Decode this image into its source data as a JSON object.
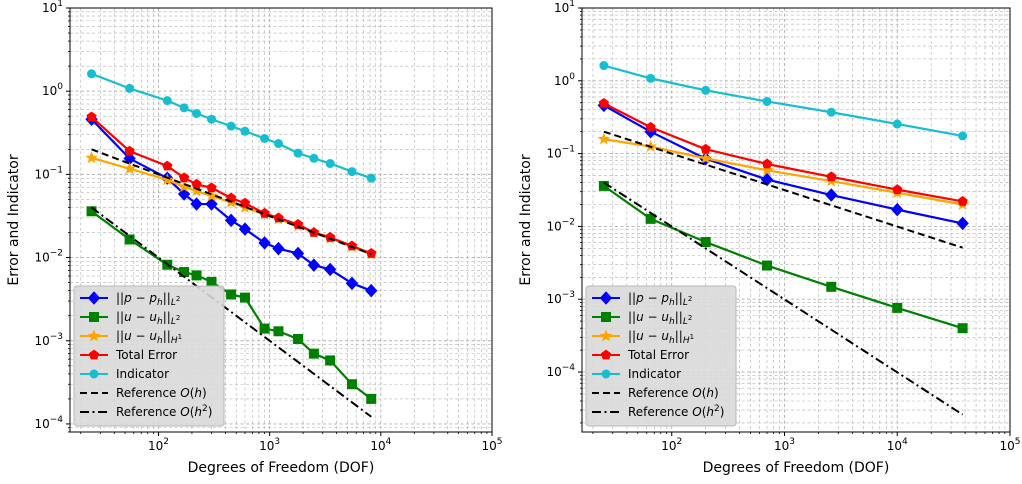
{
  "chart_data": [
    {
      "type": "line",
      "xscale": "log",
      "yscale": "log",
      "xlim": [
        16,
        100000
      ],
      "ylim": [
        8e-05,
        10
      ],
      "xlabel": "Degrees of Freedom (DOF)",
      "ylabel": "Error and Indicator",
      "grid": true,
      "legend_position": "lower-left",
      "x_ticks": [
        {
          "v": 100,
          "base": "10",
          "exp": "2"
        },
        {
          "v": 1000,
          "base": "10",
          "exp": "3"
        },
        {
          "v": 10000,
          "base": "10",
          "exp": "4"
        },
        {
          "v": 100000,
          "base": "10",
          "exp": "5"
        }
      ],
      "y_ticks": [
        {
          "v": 0.0001,
          "base": "10",
          "exp": "−4"
        },
        {
          "v": 0.001,
          "base": "10",
          "exp": "−3"
        },
        {
          "v": 0.01,
          "base": "10",
          "exp": "−2"
        },
        {
          "v": 0.1,
          "base": "10",
          "exp": "−1"
        },
        {
          "v": 1,
          "base": "10",
          "exp": "0"
        },
        {
          "v": 10,
          "base": "10",
          "exp": "1"
        }
      ],
      "series": [
        {
          "key": "pressure_l2",
          "color": "#0000ff",
          "marker": "diamond",
          "style": "solid",
          "x": [
            25,
            55,
            120,
            170,
            220,
            300,
            450,
            600,
            900,
            1200,
            1800,
            2500,
            3500,
            5500,
            8200
          ],
          "y": [
            0.46,
            0.155,
            0.09,
            0.058,
            0.044,
            0.044,
            0.028,
            0.022,
            0.015,
            0.0128,
            0.0112,
            0.0081,
            0.0072,
            0.0049,
            0.004
          ]
        },
        {
          "key": "velocity_l2",
          "color": "#008000",
          "marker": "square",
          "style": "solid",
          "x": [
            25,
            55,
            120,
            170,
            220,
            300,
            450,
            600,
            900,
            1200,
            1800,
            2500,
            3500,
            5500,
            8200
          ],
          "y": [
            0.036,
            0.0165,
            0.0082,
            0.0067,
            0.0061,
            0.0051,
            0.0036,
            0.0033,
            0.0014,
            0.0013,
            0.00105,
            0.0007,
            0.00058,
            0.0003,
            0.0002
          ]
        },
        {
          "key": "velocity_h1",
          "color": "#ffa500",
          "marker": "star",
          "style": "solid",
          "x": [
            25,
            55,
            120,
            170,
            220,
            300,
            450,
            600,
            900,
            1200,
            1800,
            2500,
            3500,
            5500,
            8200
          ],
          "y": [
            0.158,
            0.117,
            0.086,
            0.071,
            0.063,
            0.055,
            0.046,
            0.04,
            0.033,
            0.029,
            0.024,
            0.02,
            0.017,
            0.0135,
            0.011
          ]
        },
        {
          "key": "total_error",
          "color": "#ff0000",
          "marker": "pentagon",
          "style": "solid",
          "x": [
            25,
            55,
            120,
            170,
            220,
            300,
            450,
            600,
            900,
            1200,
            1800,
            2500,
            3500,
            5500,
            8200
          ],
          "y": [
            0.49,
            0.19,
            0.126,
            0.091,
            0.076,
            0.069,
            0.052,
            0.045,
            0.034,
            0.03,
            0.025,
            0.02,
            0.0175,
            0.0138,
            0.0112
          ]
        },
        {
          "key": "indicator",
          "color": "#17becf",
          "marker": "circle",
          "style": "solid",
          "x": [
            25,
            55,
            120,
            170,
            220,
            300,
            450,
            600,
            900,
            1200,
            1800,
            2500,
            3500,
            5500,
            8200
          ],
          "y": [
            1.62,
            1.08,
            0.77,
            0.63,
            0.54,
            0.46,
            0.38,
            0.33,
            0.27,
            0.235,
            0.18,
            0.156,
            0.135,
            0.108,
            0.09
          ]
        },
        {
          "key": "ref_h",
          "color": "#000000",
          "marker": "none",
          "style": "dashed",
          "x": [
            25,
            8200
          ],
          "y": [
            0.2,
            0.011
          ]
        },
        {
          "key": "ref_h2",
          "color": "#000000",
          "marker": "none",
          "style": "dashdot",
          "x": [
            25,
            8200
          ],
          "y": [
            0.04,
            0.000122
          ]
        }
      ]
    },
    {
      "type": "line",
      "xscale": "log",
      "yscale": "log",
      "xlim": [
        16,
        100000
      ],
      "ylim": [
        1.5e-05,
        10
      ],
      "xlabel": "Degrees of Freedom (DOF)",
      "ylabel": "Error and Indicator",
      "grid": true,
      "legend_position": "lower-left",
      "x_ticks": [
        {
          "v": 100,
          "base": "10",
          "exp": "2"
        },
        {
          "v": 1000,
          "base": "10",
          "exp": "3"
        },
        {
          "v": 10000,
          "base": "10",
          "exp": "4"
        },
        {
          "v": 100000,
          "base": "10",
          "exp": "5"
        }
      ],
      "y_ticks": [
        {
          "v": 0.0001,
          "base": "10",
          "exp": "−4"
        },
        {
          "v": 0.001,
          "base": "10",
          "exp": "−3"
        },
        {
          "v": 0.01,
          "base": "10",
          "exp": "−2"
        },
        {
          "v": 0.1,
          "base": "10",
          "exp": "−1"
        },
        {
          "v": 1,
          "base": "10",
          "exp": "0"
        },
        {
          "v": 10,
          "base": "10",
          "exp": "1"
        }
      ],
      "series": [
        {
          "key": "pressure_l2",
          "color": "#0000ff",
          "marker": "diamond",
          "style": "solid",
          "x": [
            25,
            65,
            200,
            700,
            2600,
            10000,
            38000
          ],
          "y": [
            0.46,
            0.2,
            0.085,
            0.044,
            0.027,
            0.017,
            0.011
          ]
        },
        {
          "key": "velocity_l2",
          "color": "#008000",
          "marker": "square",
          "style": "solid",
          "x": [
            25,
            65,
            200,
            700,
            2600,
            10000,
            38000
          ],
          "y": [
            0.036,
            0.0127,
            0.0061,
            0.0029,
            0.00148,
            0.00076,
            0.0004
          ]
        },
        {
          "key": "velocity_h1",
          "color": "#ffa500",
          "marker": "star",
          "style": "solid",
          "x": [
            25,
            65,
            200,
            700,
            2600,
            10000,
            38000
          ],
          "y": [
            0.158,
            0.125,
            0.086,
            0.059,
            0.042,
            0.029,
            0.02
          ]
        },
        {
          "key": "total_error",
          "color": "#ff0000",
          "marker": "pentagon",
          "style": "solid",
          "x": [
            25,
            65,
            200,
            700,
            2600,
            10000,
            38000
          ],
          "y": [
            0.49,
            0.23,
            0.115,
            0.072,
            0.048,
            0.032,
            0.022
          ]
        },
        {
          "key": "indicator",
          "color": "#17becf",
          "marker": "circle",
          "style": "solid",
          "x": [
            25,
            65,
            200,
            700,
            2600,
            10000,
            38000
          ],
          "y": [
            1.62,
            1.08,
            0.74,
            0.52,
            0.37,
            0.255,
            0.175
          ]
        },
        {
          "key": "ref_h",
          "color": "#000000",
          "marker": "none",
          "style": "dashed",
          "x": [
            25,
            38000
          ],
          "y": [
            0.2,
            0.0051
          ]
        },
        {
          "key": "ref_h2",
          "color": "#000000",
          "marker": "none",
          "style": "dashdot",
          "x": [
            25,
            38000
          ],
          "y": [
            0.04,
            2.6e-05
          ]
        }
      ]
    }
  ],
  "legend": [
    {
      "key": "pressure_l2",
      "prefix": "||",
      "var": "p",
      "mid": " − ",
      "sub_var": "p",
      "sub": "h",
      "suffix": "||",
      "norm": "L",
      "norm_sup": "2"
    },
    {
      "key": "velocity_l2",
      "prefix": "||",
      "var": "u",
      "mid": " − ",
      "sub_var": "u",
      "sub": "h",
      "suffix": "||",
      "norm": "L",
      "norm_sup": "2"
    },
    {
      "key": "velocity_h1",
      "prefix": "||",
      "var": "u",
      "mid": " − ",
      "sub_var": "u",
      "sub": "h",
      "suffix": "||",
      "norm": "H",
      "norm_sup": "1"
    },
    {
      "key": "total_error",
      "text": "Total Error"
    },
    {
      "key": "indicator",
      "text": "Indicator"
    },
    {
      "key": "ref_h",
      "text": "Reference ",
      "math": "O",
      "arg": "(h)"
    },
    {
      "key": "ref_h2",
      "text": "Reference ",
      "math": "O",
      "arg": "(h",
      "arg_sup": "2",
      "arg_close": ")"
    }
  ]
}
